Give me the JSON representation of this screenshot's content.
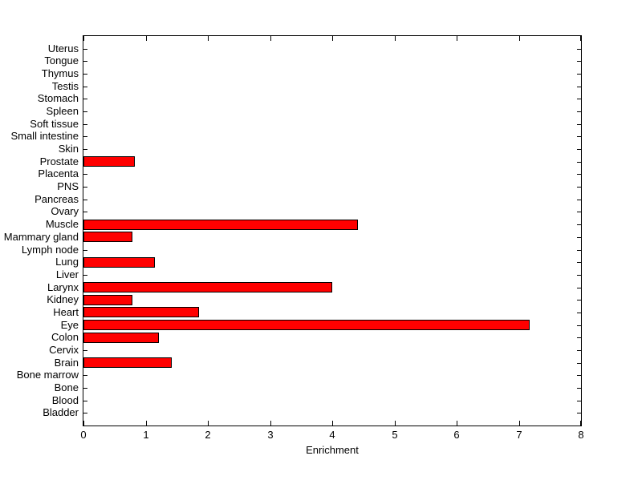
{
  "figure": {
    "background_color": "#ffffff"
  },
  "chart_data": {
    "type": "bar",
    "orientation": "horizontal",
    "title": "",
    "xlabel": "Enrichment",
    "ylabel": "",
    "categories": [
      "Uterus",
      "Tongue",
      "Thymus",
      "Testis",
      "Stomach",
      "Spleen",
      "Soft tissue",
      "Small intestine",
      "Skin",
      "Prostate",
      "Placenta",
      "PNS",
      "Pancreas",
      "Ovary",
      "Muscle",
      "Mammary gland",
      "Lymph node",
      "Lung",
      "Liver",
      "Larynx",
      "Kidney",
      "Heart",
      "Eye",
      "Colon",
      "Cervix",
      "Brain",
      "Bone marrow",
      "Bone",
      "Blood",
      "Bladder"
    ],
    "values": [
      0,
      0,
      0,
      0,
      0,
      0,
      0,
      0,
      0,
      0.83,
      0,
      0,
      0,
      0,
      4.41,
      0.79,
      0,
      1.15,
      0,
      4.0,
      0.79,
      1.86,
      7.17,
      1.21,
      0,
      1.42,
      0,
      0,
      0,
      0
    ],
    "xlim": [
      0,
      8
    ],
    "xticks": [
      "0",
      "1",
      "2",
      "3",
      "4",
      "5",
      "6",
      "7",
      "8"
    ],
    "grid": false,
    "legend": null,
    "bar_color": "#ff0000",
    "bar_edge_color": "#000000",
    "axis_color": "#000000"
  }
}
